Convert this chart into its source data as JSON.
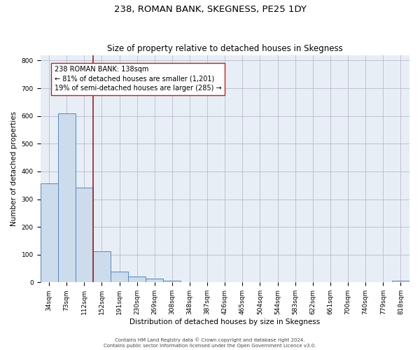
{
  "title": "238, ROMAN BANK, SKEGNESS, PE25 1DY",
  "subtitle": "Size of property relative to detached houses in Skegness",
  "xlabel": "Distribution of detached houses by size in Skegness",
  "ylabel": "Number of detached properties",
  "bar_labels": [
    "34sqm",
    "73sqm",
    "112sqm",
    "152sqm",
    "191sqm",
    "230sqm",
    "269sqm",
    "308sqm",
    "348sqm",
    "387sqm",
    "426sqm",
    "465sqm",
    "504sqm",
    "544sqm",
    "583sqm",
    "622sqm",
    "661sqm",
    "700sqm",
    "740sqm",
    "779sqm",
    "818sqm"
  ],
  "bar_values": [
    358,
    610,
    342,
    113,
    40,
    22,
    14,
    5,
    0,
    0,
    0,
    0,
    0,
    0,
    0,
    0,
    0,
    0,
    0,
    0,
    5
  ],
  "bar_color": "#ccdcec",
  "bar_edge_color": "#5588bb",
  "annotation_box_text": "238 ROMAN BANK: 138sqm\n← 81% of detached houses are smaller (1,201)\n19% of semi-detached houses are larger (285) →",
  "vline_color": "#992222",
  "ylim": [
    0,
    820
  ],
  "yticks": [
    0,
    100,
    200,
    300,
    400,
    500,
    600,
    700,
    800
  ],
  "grid_color": "#bbbbcc",
  "background_color": "#e8eef5",
  "footer_line1": "Contains HM Land Registry data © Crown copyright and database right 2024.",
  "footer_line2": "Contains public sector information licensed under the Open Government Licence v3.0.",
  "title_fontsize": 9.5,
  "subtitle_fontsize": 8.5,
  "xlabel_fontsize": 7.5,
  "ylabel_fontsize": 7.5,
  "tick_fontsize": 6.5,
  "annotation_fontsize": 7.0,
  "footer_fontsize": 5.0
}
